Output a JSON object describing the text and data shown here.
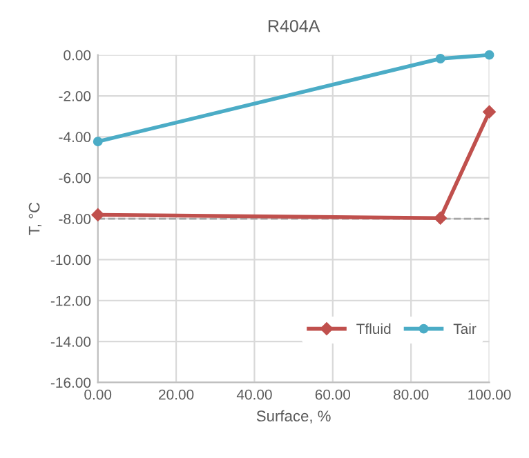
{
  "chart_data": {
    "type": "line",
    "title": "R404A",
    "xlabel": "Surface, %",
    "ylabel": "T, °C",
    "xlim": [
      0,
      100
    ],
    "xticks": [
      {
        "value": 0,
        "label": "0.00"
      },
      {
        "value": 20,
        "label": "20.00"
      },
      {
        "value": 40,
        "label": "40.00"
      },
      {
        "value": 60,
        "label": "60.00"
      },
      {
        "value": 80,
        "label": "80.00"
      },
      {
        "value": 100,
        "label": "100.00"
      }
    ],
    "ylim": [
      -16,
      0
    ],
    "yticks": [
      {
        "value": -16,
        "label": "-16.00"
      },
      {
        "value": -14,
        "label": "-14.00"
      },
      {
        "value": -12,
        "label": "-12.00"
      },
      {
        "value": -10,
        "label": "-10.00"
      },
      {
        "value": -8,
        "label": "-8.00"
      },
      {
        "value": -6,
        "label": "-6.00"
      },
      {
        "value": -4,
        "label": "-4.00"
      },
      {
        "value": -2,
        "label": "-2.00"
      },
      {
        "value": 0,
        "label": "0.00"
      }
    ],
    "grid": true,
    "legend": "bottom right",
    "ref_lines": [
      {
        "axis": "y",
        "value": -8,
        "color": "#a6a6a6",
        "line_style": "dashed"
      }
    ],
    "series": [
      {
        "name": "Tfluid",
        "color": "#c0504d",
        "marker": "diamond",
        "x": [
          0,
          87.5,
          100
        ],
        "values": [
          -7.81,
          -7.97,
          -2.78
        ]
      },
      {
        "name": "Tair",
        "color": "#4bacc6",
        "marker": "circle",
        "x": [
          0,
          87.5,
          100
        ],
        "values": [
          -4.23,
          -0.18,
          0
        ]
      }
    ]
  }
}
